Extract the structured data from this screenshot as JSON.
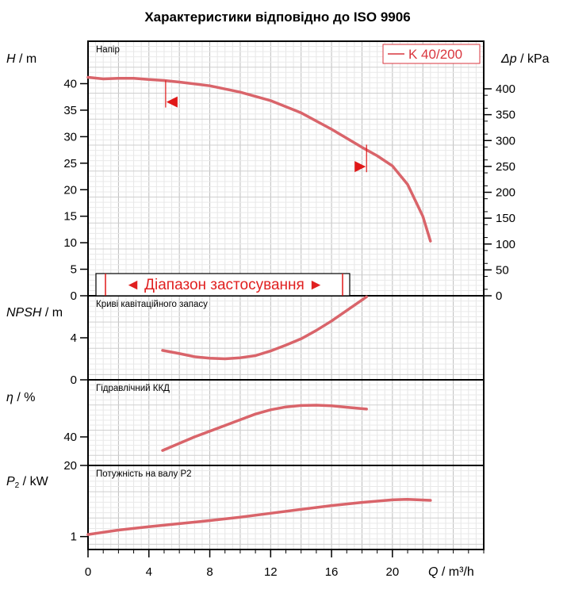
{
  "chart_data": {
    "type": "line",
    "title": "Характеристики відповідно до ISO 9906",
    "series_name": "K 40/200",
    "series_color": "#d9646a",
    "marker_color": "#e01818",
    "x_axis": {
      "label": "Q / m³/h",
      "label_var": "Q",
      "label_unit": "/ m³/h",
      "range": [
        0,
        26
      ],
      "ticks": [
        "0",
        "4",
        "8",
        "12",
        "16",
        "20"
      ]
    },
    "panels": [
      {
        "key": "head",
        "label": "Напір",
        "ylabel_var": "H",
        "ylabel_unit": "/ m",
        "ylim": [
          0,
          48
        ],
        "ticks": [
          "0",
          "5",
          "10",
          "15",
          "20",
          "25",
          "30",
          "35",
          "40"
        ],
        "right_axis": {
          "label_var": "Δp",
          "label_unit": "/ kPa",
          "ticks": [
            "0",
            "50",
            "100",
            "150",
            "200",
            "250",
            "300",
            "350",
            "400"
          ]
        },
        "points": [
          [
            0,
            41.2
          ],
          [
            1,
            40.9
          ],
          [
            2,
            41.0
          ],
          [
            3,
            41.0
          ],
          [
            4,
            40.8
          ],
          [
            5,
            40.6
          ],
          [
            6,
            40.3
          ],
          [
            8,
            39.6
          ],
          [
            10,
            38.4
          ],
          [
            12,
            36.8
          ],
          [
            14,
            34.5
          ],
          [
            16,
            31.4
          ],
          [
            18,
            28.0
          ],
          [
            19,
            26.4
          ],
          [
            20,
            24.5
          ],
          [
            21,
            21.0
          ],
          [
            22,
            15.0
          ],
          [
            22.5,
            10.3
          ]
        ],
        "range_markers": [
          {
            "x": 5.1,
            "y_top": 40.6,
            "y_bottom": 35.5,
            "direction": "left"
          },
          {
            "x": 18.3,
            "y_top": 28.5,
            "y_bottom": 23.3,
            "direction": "right"
          }
        ],
        "range_label": "◄ Діапазон застосування ►"
      },
      {
        "key": "npsh",
        "label": "Криві кавітаційного запасу",
        "ylabel_var": "NPSH",
        "ylabel_unit": "/ m",
        "ylim": [
          0,
          8
        ],
        "ticks": [
          "0",
          "4"
        ],
        "points": [
          [
            4.9,
            2.8
          ],
          [
            6,
            2.5
          ],
          [
            7,
            2.2
          ],
          [
            8,
            2.05
          ],
          [
            9,
            2.0
          ],
          [
            10,
            2.1
          ],
          [
            11,
            2.3
          ],
          [
            12,
            2.75
          ],
          [
            13,
            3.3
          ],
          [
            14,
            3.9
          ],
          [
            15,
            4.7
          ],
          [
            16,
            5.6
          ],
          [
            17,
            6.6
          ],
          [
            18,
            7.6
          ],
          [
            18.3,
            7.9
          ]
        ]
      },
      {
        "key": "efficiency",
        "label": "Гідравлічний ККД",
        "ylabel_var": "η",
        "ylabel_unit": "/ %",
        "ylim": [
          20,
          80
        ],
        "ticks": [
          "20",
          "40"
        ],
        "points": [
          [
            4.9,
            30.5
          ],
          [
            6,
            35.5
          ],
          [
            7,
            40
          ],
          [
            8,
            44
          ],
          [
            9,
            48
          ],
          [
            10,
            52
          ],
          [
            11,
            56
          ],
          [
            12,
            59
          ],
          [
            13,
            61
          ],
          [
            14,
            62
          ],
          [
            15,
            62.2
          ],
          [
            16,
            61.8
          ],
          [
            17,
            60.8
          ],
          [
            18.3,
            59.5
          ]
        ]
      },
      {
        "key": "power",
        "label": "Потужність на валу P2",
        "ylabel_var": "P",
        "ylabel_sub": "2",
        "ylabel_unit": "/ kW",
        "ylim": [
          0.5,
          3.75
        ],
        "ticks": [
          "1"
        ],
        "points": [
          [
            0,
            1.08
          ],
          [
            2,
            1.25
          ],
          [
            4,
            1.38
          ],
          [
            6,
            1.5
          ],
          [
            8,
            1.62
          ],
          [
            10,
            1.75
          ],
          [
            12,
            1.9
          ],
          [
            14,
            2.05
          ],
          [
            16,
            2.2
          ],
          [
            18,
            2.32
          ],
          [
            20,
            2.42
          ],
          [
            21,
            2.44
          ],
          [
            22.5,
            2.4
          ]
        ]
      }
    ]
  }
}
